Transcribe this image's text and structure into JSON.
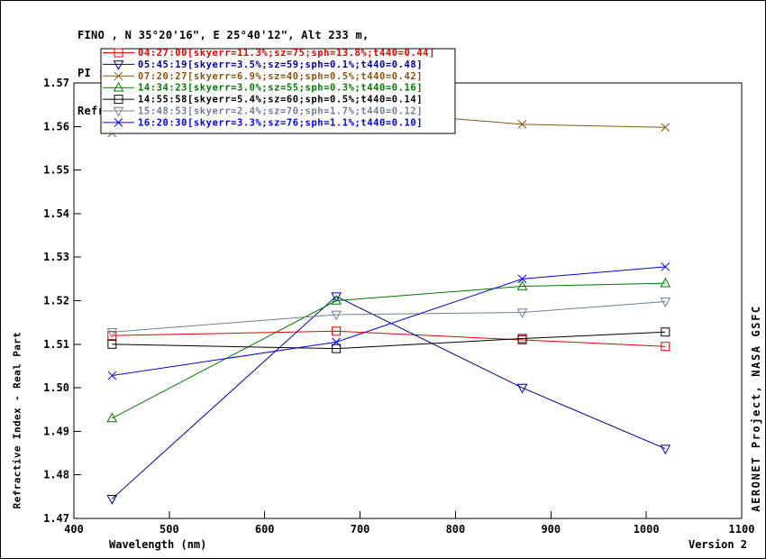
{
  "header": {
    "line1": "FINO , N 35°20'16\", E 25°40'12\", Alt 233 m,",
    "line2": "PI : Brent Holben, Brent.N.Holben@nasa.gov",
    "line3": "Refractive Index Almucantar Level 1.5; 19 JUN 2014"
  },
  "labels": {
    "ylabel": "Refractive Index - Real Part",
    "xlabel": "Wavelength (nm)",
    "right_label": "AERONET Project, NASA GSFC",
    "version": "Version 2"
  },
  "chart_data": {
    "type": "line",
    "title": "Refractive Index Almucantar Level 1.5; 19 JUN 2014",
    "xlabel": "Wavelength (nm)",
    "ylabel": "Refractive Index - Real Part",
    "x": [
      440,
      675,
      870,
      1020
    ],
    "xlim": [
      400,
      1100
    ],
    "ylim": [
      1.47,
      1.57
    ],
    "xticks": [
      400,
      500,
      600,
      700,
      800,
      900,
      1000,
      1100
    ],
    "yticks": [
      1.47,
      1.48,
      1.49,
      1.5,
      1.51,
      1.52,
      1.53,
      1.54,
      1.55,
      1.56,
      1.57
    ],
    "grid": false,
    "legend_position": "top-left",
    "series": [
      {
        "name": "04:27:00[skyerr=11.3%;sz=75;sph=13.8%;t440=0.44]",
        "color": "#e60000",
        "marker": "square",
        "values": [
          1.512,
          1.513,
          1.511,
          1.5095
        ]
      },
      {
        "name": "05:45:19[skyerr=3.5%;sz=59;sph=0.1%;t440=0.48]",
        "color": "#0000a0",
        "marker": "triangle-down",
        "values": [
          1.4745,
          1.521,
          1.5,
          1.486
        ]
      },
      {
        "name": "07:20:27[skyerr=6.9%;sz=40;sph=0.5%;t440=0.42]",
        "color": "#8b5413",
        "marker": "x",
        "values": [
          1.5585,
          1.564,
          1.5605,
          1.5598
        ]
      },
      {
        "name": "14:34:23[skyerr=3.0%;sz=55;sph=0.3%;t440=0.16]",
        "color": "#007a00",
        "marker": "triangle-up",
        "values": [
          1.493,
          1.52,
          1.5233,
          1.524
        ]
      },
      {
        "name": "14:55:58[skyerr=5.4%;sz=60;sph=0.5%;t440=0.14]",
        "color": "#000000",
        "marker": "square",
        "values": [
          1.51,
          1.509,
          1.5113,
          1.5128
        ]
      },
      {
        "name": "15:48:53[skyerr=2.4%;sz=70;sph=1.7%;t440=0.12]",
        "color": "#708090",
        "marker": "triangle-down",
        "values": [
          1.5128,
          1.5168,
          1.5173,
          1.5198
        ]
      },
      {
        "name": "16:20:30[skyerr=3.3%;sz=76;sph=1.1%;t440=0.10]",
        "color": "#0000ee",
        "marker": "x",
        "values": [
          1.5028,
          1.5105,
          1.525,
          1.5278
        ]
      }
    ]
  }
}
